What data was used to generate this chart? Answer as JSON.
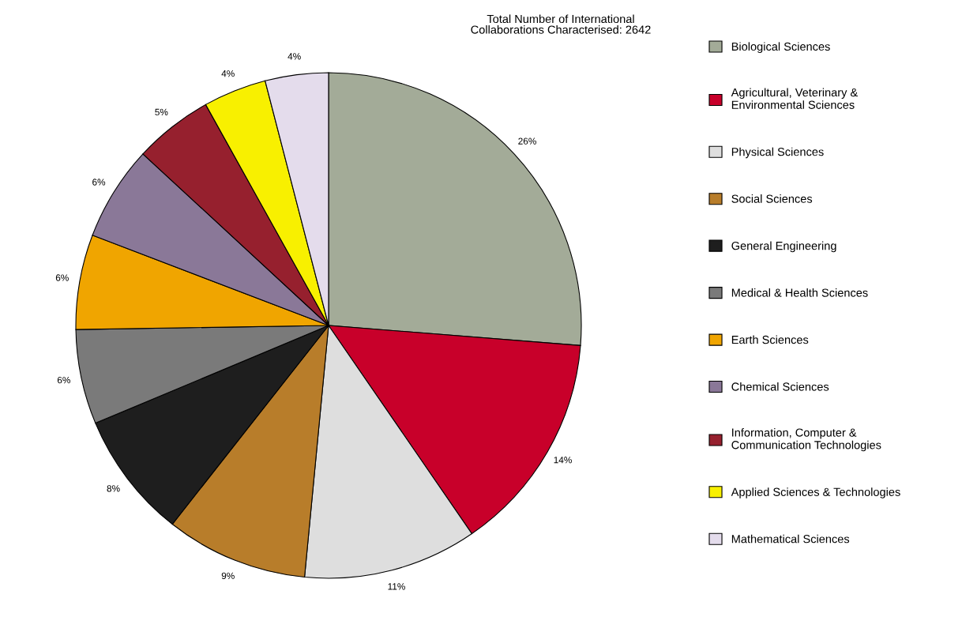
{
  "chart_data": {
    "type": "pie",
    "title": "Total Number of International\nCollaborations Characterised: 2642",
    "categories": [
      "Biological Sciences",
      "Agricultural, Veterinary &\nEnvironmental Sciences",
      "Physical Sciences",
      "Social Sciences",
      "General Engineering",
      "Medical & Health Sciences",
      "Earth Sciences",
      "Chemical Sciences",
      "Information, Computer &\nCommunication Technologies",
      "Applied Sciences & Technologies",
      "Mathematical Sciences"
    ],
    "values": [
      26,
      14,
      11,
      9,
      8,
      6,
      6,
      6,
      5,
      4,
      4
    ],
    "colors": [
      "#a3ab98",
      "#c8002a",
      "#dedede",
      "#b87d2a",
      "#1e1e1e",
      "#7a7a7a",
      "#f0a500",
      "#8a7898",
      "#96202e",
      "#f8f000",
      "#e4dcec"
    ],
    "value_labels": [
      "26%",
      "14%",
      "11%",
      "9%",
      "8%",
      "6%",
      "6%",
      "6%",
      "5%",
      "4%",
      "4%"
    ],
    "legend": "right"
  }
}
